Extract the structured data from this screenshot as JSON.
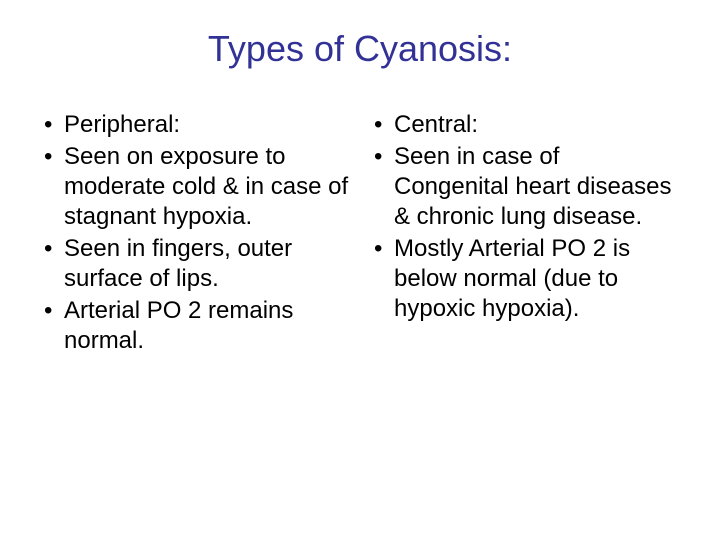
{
  "title": "Types of Cyanosis:",
  "title_color": "#323296",
  "title_fontsize": 36,
  "body_fontsize": 24,
  "body_color": "#000000",
  "background_color": "#ffffff",
  "left_column": {
    "items": [
      "Peripheral:",
      "Seen on exposure to moderate cold & in case of stagnant hypoxia.",
      "Seen in fingers, outer surface of lips.",
      "Arterial PO 2 remains normal."
    ]
  },
  "right_column": {
    "items": [
      "Central:",
      "Seen in case of Congenital heart diseases & chronic lung disease.",
      "Mostly Arterial PO 2 is below normal (due to hypoxic hypoxia)."
    ]
  }
}
